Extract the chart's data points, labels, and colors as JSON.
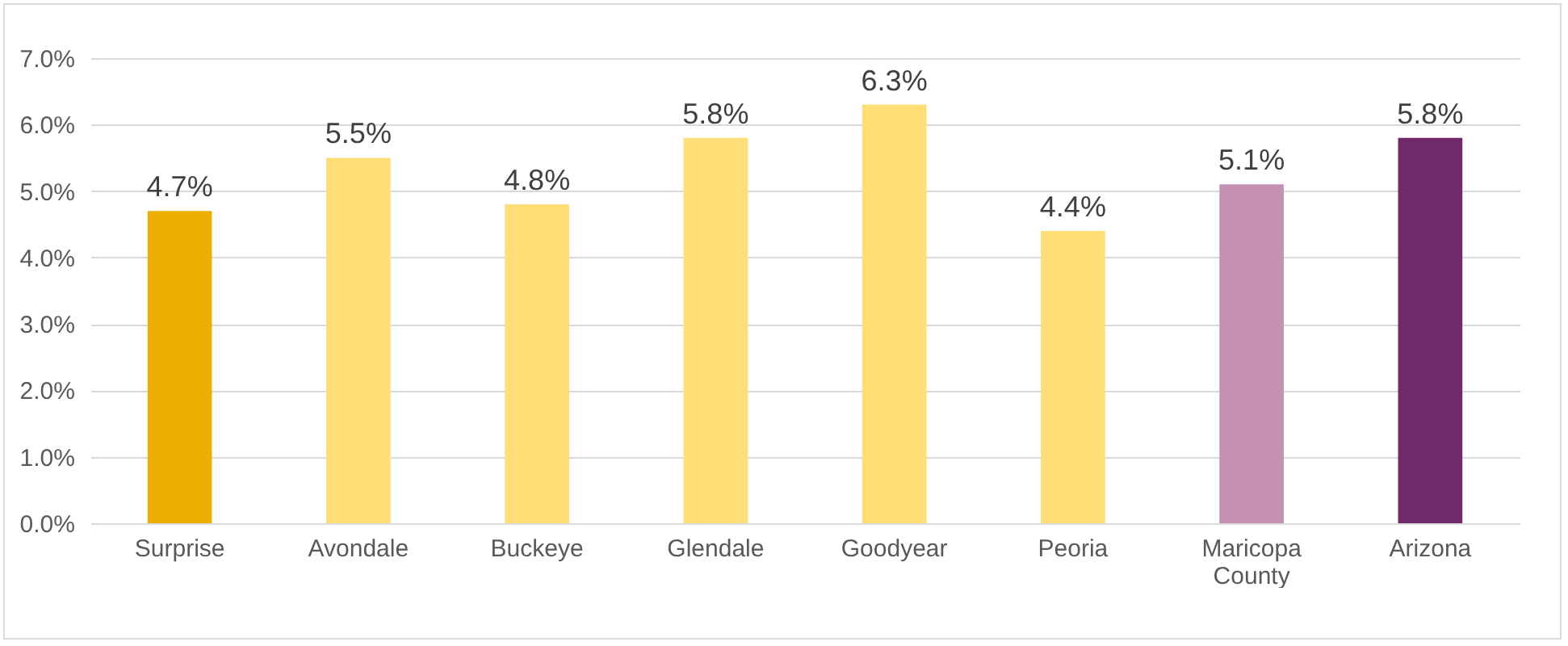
{
  "chart_data": {
    "type": "bar",
    "categories": [
      "Surprise",
      "Avondale",
      "Buckeye",
      "Glendale",
      "Goodyear",
      "Peoria",
      "Maricopa County",
      "Arizona"
    ],
    "values": [
      4.7,
      5.5,
      4.8,
      5.8,
      6.3,
      4.4,
      5.1,
      5.8
    ],
    "colors": [
      "#eeb000",
      "#ffdd77",
      "#ffdd77",
      "#ffdd77",
      "#ffdd77",
      "#ffdd77",
      "#c490b4",
      "#70296a"
    ],
    "value_labels": [
      "4.7%",
      "5.5%",
      "4.8%",
      "5.8%",
      "6.3%",
      "4.4%",
      "5.1%",
      "5.8%"
    ],
    "ylim": [
      0,
      7
    ],
    "yticks": [
      {
        "value": 0,
        "label": "0.0%"
      },
      {
        "value": 1,
        "label": "1.0%"
      },
      {
        "value": 2,
        "label": "2.0%"
      },
      {
        "value": 3,
        "label": "3.0%"
      },
      {
        "value": 4,
        "label": "4.0%"
      },
      {
        "value": 5,
        "label": "5.0%"
      },
      {
        "value": 6,
        "label": "6.0%"
      },
      {
        "value": 7,
        "label": "7.0%"
      }
    ],
    "grid": "y"
  }
}
